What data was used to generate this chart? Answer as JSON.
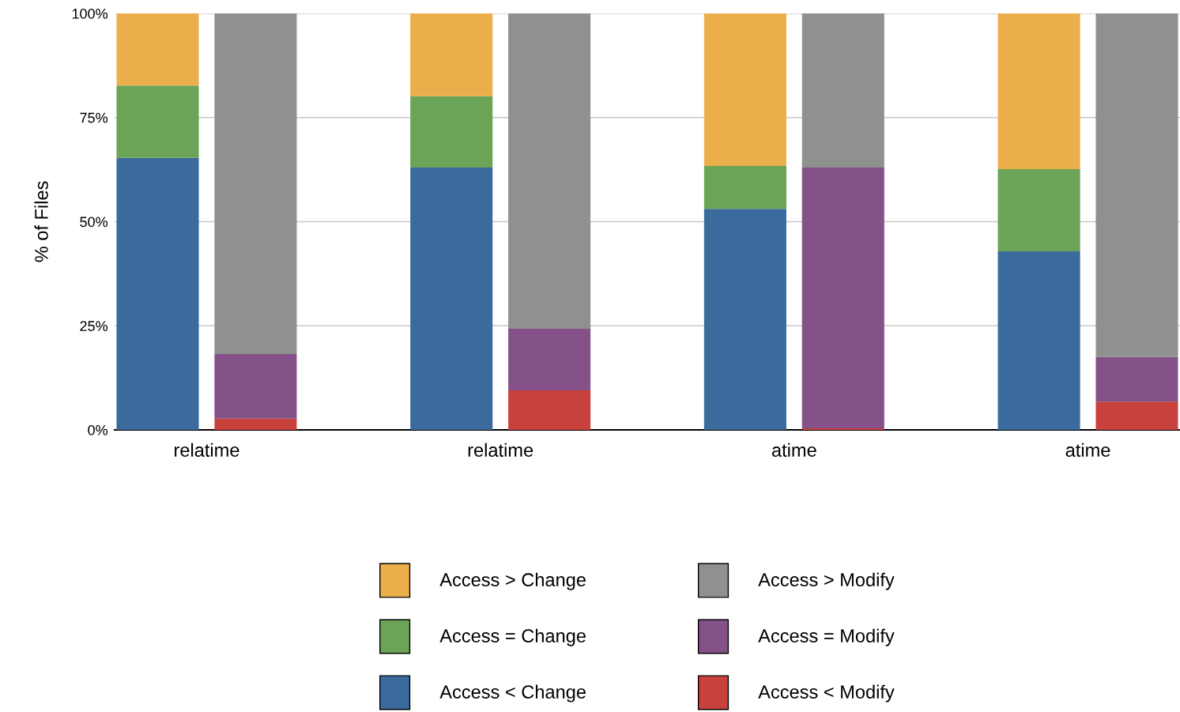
{
  "chart_data": {
    "type": "bar",
    "stacked": true,
    "ylabel": "% of Files",
    "categories": [
      "relatime",
      null,
      null,
      "relatime",
      null,
      null,
      "atime",
      null,
      null,
      "atime",
      null
    ],
    "ylim": [
      0,
      100
    ],
    "yticks": [
      {
        "value": 0,
        "label": "0%"
      },
      {
        "value": 25,
        "label": "25%"
      },
      {
        "value": 50,
        "label": "50%"
      },
      {
        "value": 75,
        "label": "75%"
      },
      {
        "value": 100,
        "label": "100%"
      }
    ],
    "grid": "y",
    "legend": "bottom",
    "series": [
      {
        "name": "Access < Change",
        "color": "#3b6a9c",
        "values": [
          65.3,
          null,
          null,
          63.0,
          null,
          null,
          53.1,
          null,
          null,
          42.9,
          null
        ]
      },
      {
        "name": "Access = Change",
        "color": "#6ba357",
        "values": [
          17.4,
          null,
          null,
          17.1,
          null,
          null,
          10.3,
          null,
          null,
          19.7,
          null
        ]
      },
      {
        "name": "Access > Change",
        "color": "#ecae4b",
        "values": [
          17.3,
          null,
          null,
          19.9,
          null,
          null,
          36.6,
          null,
          null,
          37.4,
          null
        ]
      },
      {
        "name": "Access < Modify",
        "color": "#c9413d",
        "values": [
          null,
          2.7,
          null,
          null,
          9.5,
          null,
          null,
          0.4,
          null,
          null,
          6.8
        ]
      },
      {
        "name": "Access = Modify",
        "color": "#845189",
        "values": [
          null,
          15.5,
          null,
          null,
          14.8,
          null,
          null,
          62.6,
          null,
          null,
          10.7
        ]
      },
      {
        "name": "Access > Modify",
        "color": "#8f918f",
        "values": [
          null,
          81.8,
          null,
          null,
          75.7,
          null,
          null,
          37.0,
          null,
          null,
          82.5
        ]
      }
    ]
  }
}
